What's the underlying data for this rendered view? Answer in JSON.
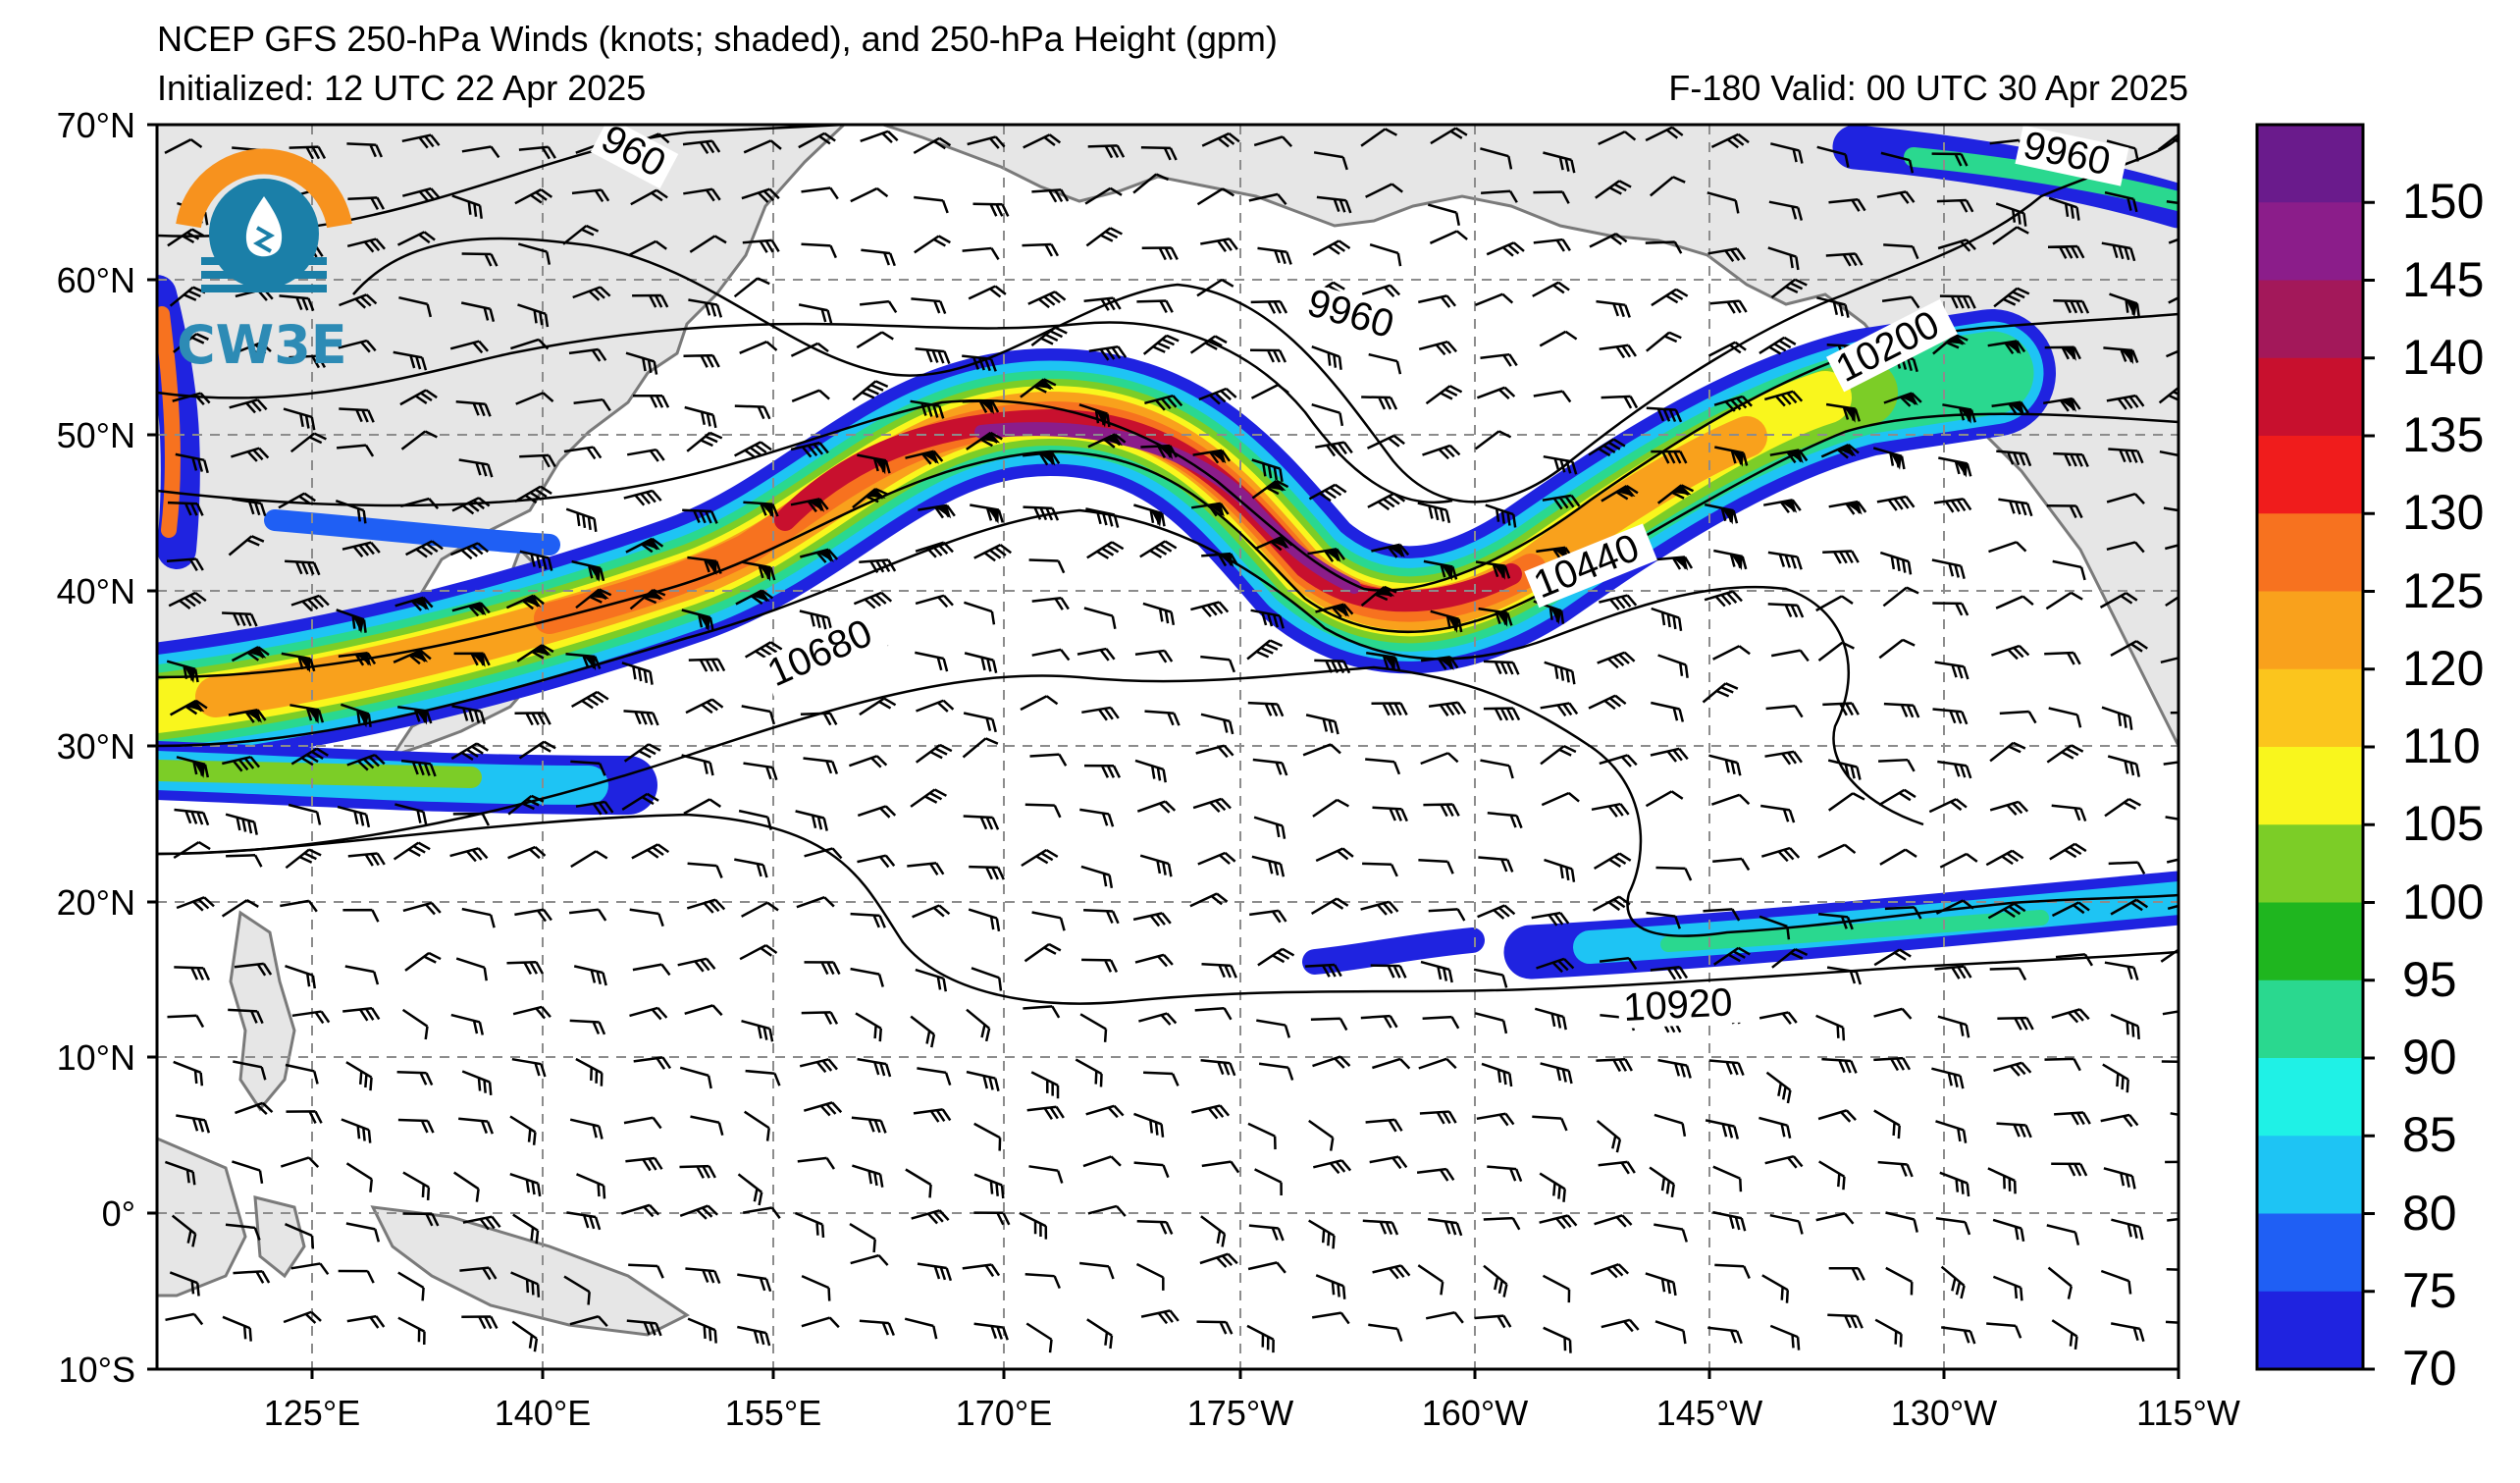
{
  "header": {
    "title": "NCEP GFS 250-hPa Winds (knots; shaded), and 250-hPa Height (gpm)",
    "initialized": "Initialized: 12 UTC 22 Apr 2025",
    "valid": "F-180  Valid: 00 UTC 30 Apr 2025"
  },
  "logo": {
    "text": "CW3E"
  },
  "axes": {
    "lat_labels": [
      "70°N",
      "60°N",
      "50°N",
      "40°N",
      "30°N",
      "20°N",
      "10°N",
      "0°",
      "10°S"
    ],
    "lon_labels": [
      "125°E",
      "140°E",
      "155°E",
      "170°E",
      "175°W",
      "160°W",
      "145°W",
      "130°W",
      "115°W"
    ]
  },
  "contour_labels": [
    "960",
    "9960",
    "9960",
    "10200",
    "10440",
    "10680",
    "10920"
  ],
  "colorbar": {
    "ticks": [
      "150",
      "145",
      "140",
      "135",
      "130",
      "125",
      "120",
      "110",
      "105",
      "100",
      "95",
      "90",
      "85",
      "80",
      "75",
      "70"
    ],
    "colors": [
      "#6a1b8c",
      "#8b1d8a",
      "#a3185a",
      "#c8102e",
      "#f01c1c",
      "#f7721f",
      "#f9a11c",
      "#fbc51d",
      "#f9f61d",
      "#7ccd27",
      "#1fb61f",
      "#2ad88f",
      "#1ff1e6",
      "#1ec4f4",
      "#1f5ff4",
      "#1f23e0"
    ]
  },
  "land_color": "#e6e6e6",
  "coast_color": "#7a7a7a"
}
